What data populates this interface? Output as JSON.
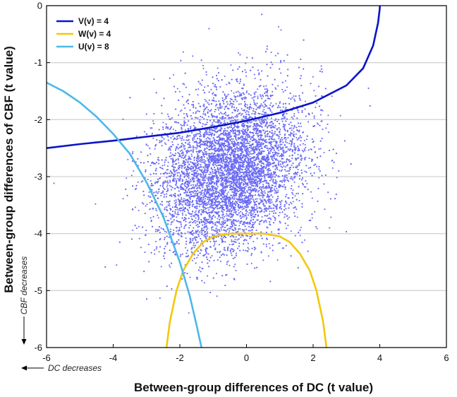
{
  "chart_data": {
    "type": "scatter",
    "title": "",
    "xlabel": "Between-group differences of DC (t value)",
    "ylabel": "Between-group differences of CBF (t value)",
    "xlim": [
      -6,
      6
    ],
    "ylim": [
      -6,
      0
    ],
    "xticks": [
      -6,
      -4,
      -2,
      0,
      2,
      4,
      6
    ],
    "yticks": [
      0,
      -1,
      -2,
      -3,
      -4,
      -5,
      -6
    ],
    "xtick_labels": [
      "-6",
      "-4",
      "-2",
      "0",
      "2",
      "4",
      "6"
    ],
    "ytick_labels": [
      "0",
      "-1",
      "-2",
      "-3",
      "-4",
      "-5",
      "-6"
    ],
    "grid": "horizontal",
    "x_note": "DC decreases",
    "y_note": "CBF decreases",
    "legend_position": "top-left",
    "scatter": {
      "color": "#6b6bf5",
      "point_count": 9000,
      "center": [
        -0.5,
        -2.9
      ],
      "sd": [
        1.1,
        0.7
      ],
      "correlation": 0.22
    },
    "series": [
      {
        "name": "V(v) = 4",
        "color": "#0a14c8",
        "x": [
          -6,
          -5,
          -4,
          -3,
          -2,
          -1,
          0,
          1,
          2,
          3,
          3.5,
          3.8,
          3.95,
          4.0,
          4.0
        ],
        "y": [
          -2.5,
          -2.43,
          -2.37,
          -2.3,
          -2.23,
          -2.13,
          -2.02,
          -1.88,
          -1.7,
          -1.4,
          -1.1,
          -0.7,
          -0.3,
          -0.05,
          0
        ]
      },
      {
        "name": "W(v) = 4",
        "color": "#f2c80f",
        "x": [
          -2.4,
          -2.3,
          -2.1,
          -1.9,
          -1.6,
          -1.3,
          -1,
          -0.5,
          0,
          0.5,
          1,
          1.3,
          1.6,
          1.9,
          2.1,
          2.3,
          2.4
        ],
        "y": [
          -6,
          -5.55,
          -5.0,
          -4.65,
          -4.35,
          -4.15,
          -4.05,
          -4.0,
          -4.0,
          -4.0,
          -4.05,
          -4.15,
          -4.35,
          -4.65,
          -5.0,
          -5.55,
          -6
        ]
      },
      {
        "name": "U(v) = 8",
        "color": "#4db8e8",
        "x": [
          -6,
          -5.5,
          -5,
          -4.5,
          -4,
          -3.5,
          -3,
          -2.5,
          -2,
          -1.7,
          -1.5,
          -1.35
        ],
        "y": [
          -1.35,
          -1.5,
          -1.7,
          -1.95,
          -2.25,
          -2.6,
          -3.1,
          -3.7,
          -4.5,
          -5.1,
          -5.6,
          -6
        ]
      }
    ]
  }
}
